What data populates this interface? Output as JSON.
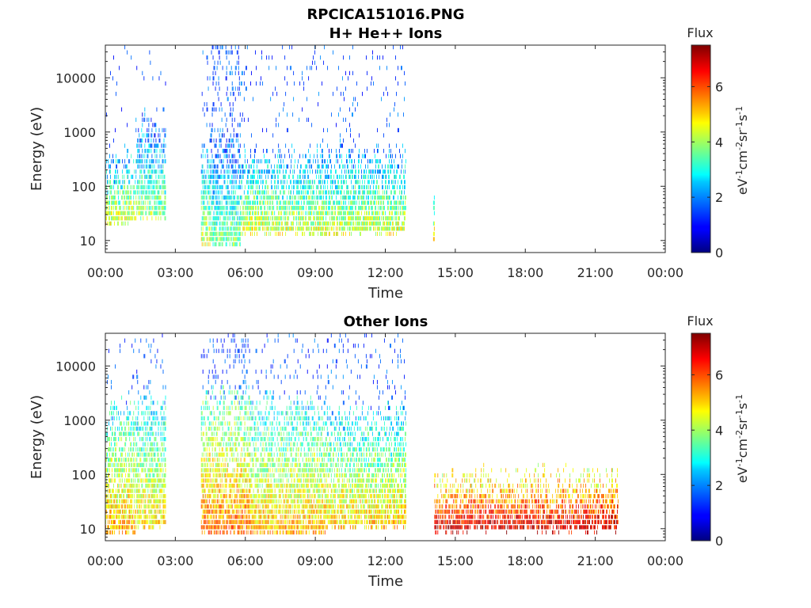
{
  "figure": {
    "title": "RPCICA151016.PNG"
  },
  "colorbar": {
    "label_top": "Flux",
    "unit_label": "eV-1cm-2sr-1s-1",
    "min": 0,
    "max": 7.5,
    "ticks": [
      "0",
      "2",
      "4",
      "6"
    ]
  },
  "chart_data": [
    {
      "type": "heatmap",
      "title": "H+ He++ Ions",
      "xlabel": "Time",
      "ylabel": "Energy (eV)",
      "x_ticks": [
        "00:00",
        "03:00",
        "06:00",
        "09:00",
        "12:00",
        "15:00",
        "18:00",
        "21:00",
        "00:00"
      ],
      "xlim_hours": [
        0,
        24
      ],
      "y_ticks": [
        "10",
        "100",
        "1000",
        "10000"
      ],
      "ylim": [
        6,
        40000
      ],
      "y_scale": "log",
      "grid": false,
      "colormap": "jet",
      "clim": [
        0,
        7.5
      ],
      "segments": [
        {
          "t_start": 0.0,
          "t_end": 1.3,
          "e_min": 15,
          "e_max": 300,
          "flux": 3.4,
          "scatter_above_max": 0.1
        },
        {
          "t_start": 1.3,
          "t_end": 2.6,
          "e_min": 20,
          "e_max": 1400,
          "flux": 2.8,
          "scatter_above_max": 0.1
        },
        {
          "t_start": 4.1,
          "t_end": 4.5,
          "e_min": 6,
          "e_max": 600,
          "flux": 3.2,
          "scatter_above_max": 0.3
        },
        {
          "t_start": 4.5,
          "t_end": 5.8,
          "e_min": 6,
          "e_max": 1000,
          "flux": 2.6,
          "scatter_above_max": 0.9
        },
        {
          "t_start": 5.8,
          "t_end": 7.0,
          "e_min": 10,
          "e_max": 300,
          "flux": 3.4,
          "scatter_above_max": 0.25
        },
        {
          "t_start": 7.0,
          "t_end": 12.9,
          "e_min": 10,
          "e_max": 350,
          "flux": 3.3,
          "scatter_above_max": 0.2
        },
        {
          "t_start": 14.05,
          "t_end": 14.12,
          "e_min": 8,
          "e_max": 90,
          "flux": 3.8,
          "scatter_above_max": 0.0
        }
      ]
    },
    {
      "type": "heatmap",
      "title": "Other Ions",
      "xlabel": "Time",
      "ylabel": "Energy (eV)",
      "x_ticks": [
        "00:00",
        "03:00",
        "06:00",
        "09:00",
        "12:00",
        "15:00",
        "18:00",
        "21:00",
        "00:00"
      ],
      "xlim_hours": [
        0,
        24
      ],
      "y_ticks": [
        "10",
        "100",
        "1000",
        "10000"
      ],
      "ylim": [
        6,
        40000
      ],
      "y_scale": "log",
      "grid": false,
      "colormap": "jet",
      "clim": [
        0,
        7.5
      ],
      "segments": [
        {
          "t_start": 0.0,
          "t_end": 1.3,
          "e_min": 6,
          "e_max": 1500,
          "flux": 4.2,
          "scatter_above_max": 0.25
        },
        {
          "t_start": 1.3,
          "t_end": 2.6,
          "e_min": 8,
          "e_max": 2500,
          "flux": 3.8,
          "scatter_above_max": 0.25
        },
        {
          "t_start": 4.1,
          "t_end": 6.2,
          "e_min": 6,
          "e_max": 2500,
          "flux": 4.6,
          "scatter_above_max": 0.7
        },
        {
          "t_start": 6.2,
          "t_end": 9.5,
          "e_min": 6,
          "e_max": 1800,
          "flux": 4.1,
          "scatter_above_max": 0.4
        },
        {
          "t_start": 9.5,
          "t_end": 12.9,
          "e_min": 8,
          "e_max": 1200,
          "flux": 3.9,
          "scatter_above_max": 0.35
        },
        {
          "t_start": 14.1,
          "t_end": 22.0,
          "e_min": 7,
          "e_max": 80,
          "flux": 5.8,
          "scatter_above_max": 0.0
        }
      ]
    }
  ]
}
